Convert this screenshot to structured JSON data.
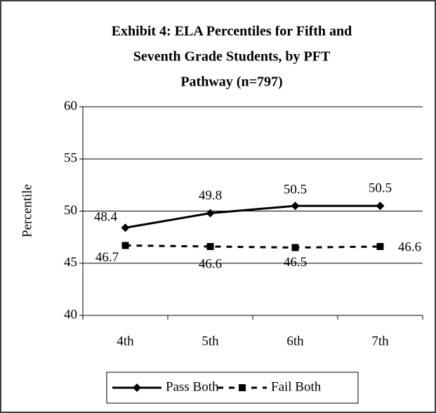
{
  "chart_data": {
    "type": "line",
    "title": [
      "Exhibit 4: ELA Percentiles for Fifth and",
      "Seventh Grade Students, by PFT",
      "Pathway (n=797)"
    ],
    "y_label": "Percentile",
    "categories": [
      "4th",
      "5th",
      "6th",
      "7th"
    ],
    "series": [
      {
        "name": "Pass Both",
        "color": "#000000",
        "marker": "diamond",
        "dash": false,
        "values": [
          48.4,
          49.8,
          50.5,
          50.5
        ]
      },
      {
        "name": "Fail Both",
        "color": "#000000",
        "marker": "square",
        "dash": true,
        "values": [
          46.7,
          46.6,
          46.5,
          46.6
        ]
      }
    ],
    "ylim": [
      40,
      60
    ],
    "yticks": [
      40,
      45,
      50,
      55,
      60
    ],
    "grid": true,
    "legend": "bottom"
  }
}
